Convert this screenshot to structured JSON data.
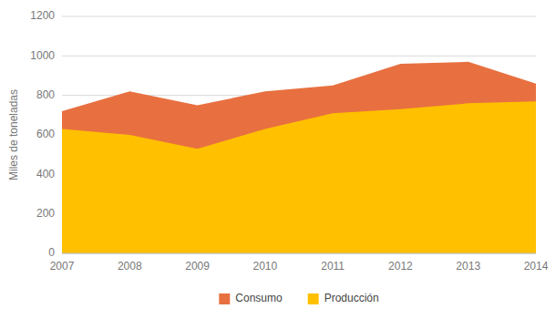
{
  "chart_data": {
    "type": "area",
    "ylabel": "Miles de toneladas",
    "x": [
      2007,
      2008,
      2009,
      2010,
      2011,
      2012,
      2013,
      2014
    ],
    "series": [
      {
        "name": "Consumo",
        "color": "#E87040",
        "values": [
          720,
          820,
          750,
          820,
          850,
          960,
          970,
          860
        ]
      },
      {
        "name": "Producción",
        "color": "#FFC000",
        "values": [
          630,
          600,
          530,
          630,
          710,
          730,
          760,
          770
        ]
      }
    ],
    "xlim": [
      2007,
      2014
    ],
    "xticks": [
      2007,
      2008,
      2009,
      2010,
      2011,
      2012,
      2013,
      2014
    ],
    "ylim": [
      0,
      1200
    ],
    "yticks": [
      0,
      200,
      400,
      600,
      800,
      1000,
      1200
    ],
    "grid": true,
    "legend": "bottom"
  }
}
